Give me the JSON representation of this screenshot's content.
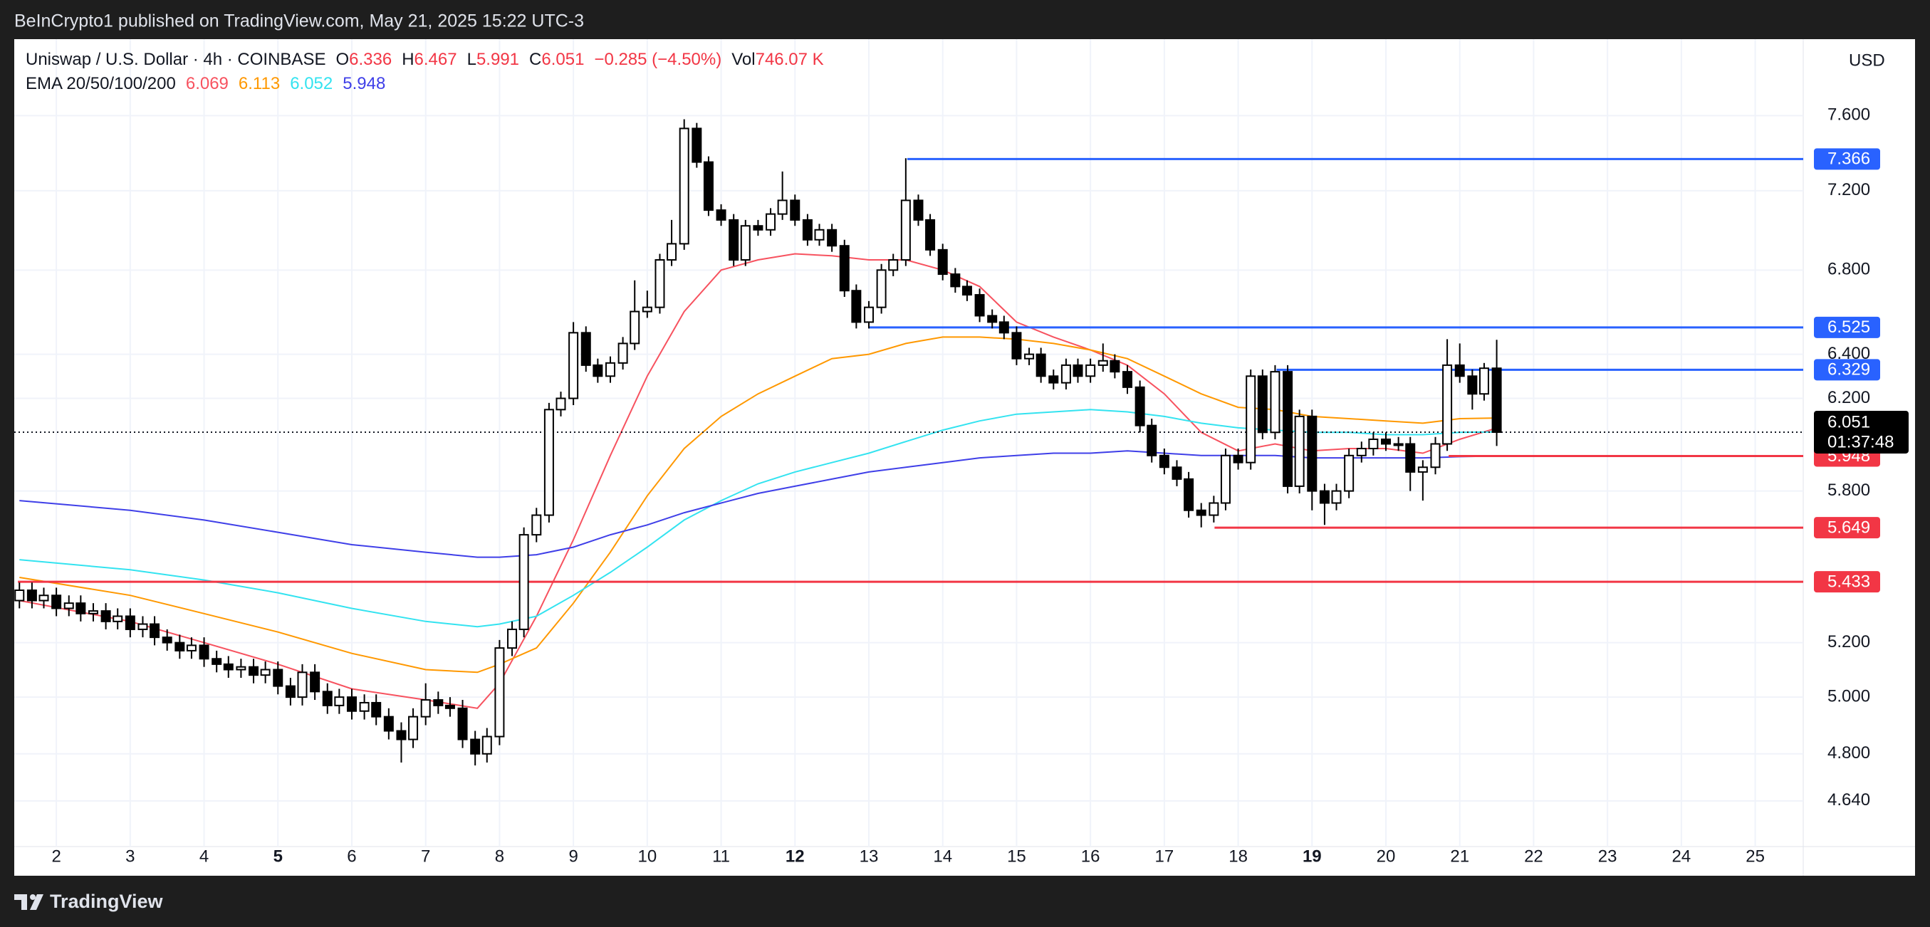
{
  "header": {
    "publisher": "BeInCrypto1 published on TradingView.com, May 21, 2025 15:22 UTC-3"
  },
  "footer": {
    "brand": "TradingView"
  },
  "legend": {
    "symbol": "Uniswap / U.S. Dollar · 4h · COINBASE",
    "ohlc_labels": [
      "O",
      "H",
      "L",
      "C"
    ],
    "change": "−0.285 (−4.50%)",
    "volume_label": "Vol",
    "volume": "746.07 K",
    "ema_label": "EMA 20/50/100/200"
  },
  "chart_data": {
    "type": "candlestick",
    "currency": "USD",
    "log_scale": true,
    "grid": true,
    "up_color": "#ffffff",
    "down_color": "#000000",
    "xlim": [
      1.43,
      25.65
    ],
    "ylim": [
      4.49,
      8.03
    ],
    "xticks": [
      2,
      3,
      4,
      5,
      6,
      7,
      8,
      9,
      10,
      11,
      12,
      13,
      14,
      15,
      16,
      17,
      18,
      19,
      20,
      21,
      22,
      23,
      24,
      25
    ],
    "xticks_bold": [
      5,
      12,
      19
    ],
    "yticks": [
      {
        "value": 7.6,
        "label": "7.600"
      },
      {
        "value": 7.2,
        "label": "7.200"
      },
      {
        "value": 6.8,
        "label": "6.800"
      },
      {
        "value": 6.4,
        "label": "6.400"
      },
      {
        "value": 6.2,
        "label": "6.200"
      },
      {
        "value": 5.8,
        "label": "5.800"
      },
      {
        "value": 5.2,
        "label": "5.200"
      },
      {
        "value": 5,
        "label": "5.000"
      },
      {
        "value": 4.8,
        "label": "4.800"
      },
      {
        "value": 4.64,
        "label": "4.640"
      }
    ],
    "x": [
      1.5,
      1.67,
      1.83,
      2,
      2.17,
      2.33,
      2.5,
      2.67,
      2.83,
      3,
      3.17,
      3.33,
      3.5,
      3.67,
      3.83,
      4,
      4.17,
      4.33,
      4.5,
      4.67,
      4.83,
      5,
      5.17,
      5.33,
      5.5,
      5.67,
      5.83,
      6,
      6.17,
      6.33,
      6.5,
      6.67,
      6.83,
      7,
      7.17,
      7.33,
      7.5,
      7.67,
      7.83,
      8,
      8.17,
      8.33,
      8.5,
      8.67,
      8.83,
      9,
      9.17,
      9.33,
      9.5,
      9.67,
      9.83,
      10,
      10.17,
      10.33,
      10.5,
      10.67,
      10.83,
      11,
      11.17,
      11.33,
      11.5,
      11.67,
      11.83,
      12,
      12.17,
      12.33,
      12.5,
      12.67,
      12.83,
      13,
      13.17,
      13.33,
      13.5,
      13.67,
      13.83,
      14,
      14.17,
      14.33,
      14.5,
      14.67,
      14.83,
      15,
      15.17,
      15.33,
      15.5,
      15.67,
      15.83,
      16,
      16.17,
      16.33,
      16.5,
      16.67,
      16.83,
      17,
      17.17,
      17.33,
      17.5,
      17.67,
      17.83,
      18,
      18.17,
      18.33,
      18.5,
      18.67,
      18.83,
      19,
      19.17,
      19.33,
      19.5,
      19.67,
      19.83,
      20,
      20.17,
      20.33,
      20.5,
      20.67,
      20.83,
      21,
      21.17,
      21.33,
      21.5
    ],
    "open": [
      5.36,
      5.4,
      5.36,
      5.38,
      5.33,
      5.35,
      5.31,
      5.32,
      5.28,
      5.3,
      5.25,
      5.27,
      5.22,
      5.2,
      5.17,
      5.19,
      5.14,
      5.12,
      5.1,
      5.11,
      5.08,
      5.1,
      5.04,
      5.0,
      5.09,
      5.02,
      4.97,
      5.0,
      4.95,
      4.98,
      4.93,
      4.88,
      4.85,
      4.93,
      4.99,
      4.97,
      4.96,
      4.85,
      4.8,
      4.86,
      5.18,
      5.25,
      5.62,
      5.7,
      6.15,
      6.2,
      6.5,
      6.35,
      6.3,
      6.36,
      6.45,
      6.6,
      6.62,
      6.85,
      6.93,
      7.53,
      7.35,
      7.1,
      7.05,
      6.85,
      7.02,
      7.0,
      7.08,
      7.15,
      7.05,
      6.95,
      7.0,
      6.92,
      6.7,
      6.55,
      6.62,
      6.8,
      6.85,
      7.15,
      7.05,
      6.9,
      6.78,
      6.72,
      6.68,
      6.58,
      6.55,
      6.5,
      6.38,
      6.4,
      6.3,
      6.27,
      6.35,
      6.3,
      6.35,
      6.37,
      6.32,
      6.25,
      6.08,
      5.95,
      5.9,
      5.85,
      5.72,
      5.7,
      5.75,
      5.95,
      5.92,
      6.3,
      6.05,
      6.32,
      5.82,
      6.12,
      5.8,
      5.75,
      5.8,
      5.95,
      5.98,
      6.02,
      6.0,
      6.0,
      5.88,
      5.9,
      6.0,
      6.35,
      6.3,
      6.22,
      6.336
    ],
    "high": [
      5.43,
      5.43,
      5.41,
      5.41,
      5.38,
      5.38,
      5.35,
      5.35,
      5.33,
      5.33,
      5.3,
      5.3,
      5.25,
      5.23,
      5.22,
      5.22,
      5.17,
      5.15,
      5.14,
      5.14,
      5.13,
      5.13,
      5.07,
      5.12,
      5.12,
      5.05,
      5.03,
      5.03,
      5.01,
      5.01,
      4.96,
      4.91,
      4.96,
      5.05,
      5.02,
      5.0,
      4.99,
      4.88,
      4.89,
      5.21,
      5.28,
      5.65,
      5.73,
      6.18,
      6.23,
      6.55,
      6.53,
      6.38,
      6.39,
      6.48,
      6.75,
      6.7,
      6.88,
      7.05,
      7.58,
      7.56,
      7.38,
      7.13,
      7.08,
      7.05,
      7.05,
      7.11,
      7.3,
      7.18,
      7.08,
      7.03,
      7.03,
      6.95,
      6.73,
      6.65,
      6.83,
      6.88,
      7.37,
      7.18,
      7.08,
      6.93,
      6.81,
      6.75,
      6.71,
      6.61,
      6.58,
      6.53,
      6.43,
      6.43,
      6.33,
      6.38,
      6.38,
      6.38,
      6.45,
      6.4,
      6.35,
      6.28,
      6.11,
      5.98,
      5.93,
      5.88,
      5.75,
      5.78,
      5.98,
      5.98,
      6.33,
      6.33,
      6.35,
      6.35,
      6.15,
      6.15,
      5.83,
      5.83,
      5.98,
      6.01,
      6.05,
      6.05,
      6.03,
      6.03,
      5.93,
      6.03,
      6.47,
      6.45,
      6.33,
      6.36,
      6.467
    ],
    "low": [
      5.33,
      5.33,
      5.33,
      5.3,
      5.3,
      5.28,
      5.28,
      5.25,
      5.25,
      5.22,
      5.22,
      5.19,
      5.17,
      5.14,
      5.14,
      5.11,
      5.09,
      5.07,
      5.07,
      5.05,
      5.05,
      5.01,
      4.97,
      4.97,
      4.99,
      4.94,
      4.94,
      4.92,
      4.92,
      4.9,
      4.85,
      4.77,
      4.82,
      4.9,
      4.94,
      4.93,
      4.82,
      4.76,
      4.77,
      4.83,
      5.15,
      5.22,
      5.59,
      5.67,
      6.12,
      6.17,
      6.32,
      6.27,
      6.27,
      6.33,
      6.42,
      6.57,
      6.59,
      6.82,
      6.9,
      7.32,
      7.07,
      7.02,
      6.82,
      6.82,
      6.97,
      6.97,
      7.05,
      7.02,
      6.92,
      6.92,
      6.89,
      6.67,
      6.52,
      6.52,
      6.59,
      6.77,
      6.82,
      7.02,
      6.87,
      6.75,
      6.69,
      6.65,
      6.55,
      6.52,
      6.47,
      6.35,
      6.35,
      6.27,
      6.24,
      6.24,
      6.27,
      6.27,
      6.32,
      6.29,
      6.22,
      6.05,
      5.92,
      5.87,
      5.82,
      5.69,
      5.65,
      5.67,
      5.72,
      5.89,
      5.89,
      6.02,
      6.02,
      5.79,
      5.79,
      5.72,
      5.66,
      5.72,
      5.77,
      5.92,
      5.95,
      5.97,
      5.97,
      5.8,
      5.76,
      5.87,
      5.97,
      6.27,
      6.15,
      6.19,
      5.991
    ],
    "close": [
      5.4,
      5.36,
      5.38,
      5.33,
      5.35,
      5.31,
      5.32,
      5.28,
      5.3,
      5.25,
      5.27,
      5.22,
      5.2,
      5.17,
      5.19,
      5.14,
      5.12,
      5.1,
      5.11,
      5.08,
      5.1,
      5.04,
      5.0,
      5.09,
      5.02,
      4.97,
      5.0,
      4.95,
      4.98,
      4.93,
      4.88,
      4.85,
      4.93,
      4.99,
      4.97,
      4.96,
      4.85,
      4.8,
      4.86,
      5.18,
      5.25,
      5.62,
      5.7,
      6.15,
      6.2,
      6.5,
      6.35,
      6.3,
      6.36,
      6.45,
      6.6,
      6.62,
      6.85,
      6.93,
      7.53,
      7.35,
      7.1,
      7.05,
      6.85,
      7.02,
      7.0,
      7.08,
      7.15,
      7.05,
      6.95,
      7.0,
      6.92,
      6.7,
      6.55,
      6.62,
      6.8,
      6.85,
      7.15,
      7.05,
      6.9,
      6.78,
      6.72,
      6.68,
      6.58,
      6.55,
      6.5,
      6.38,
      6.4,
      6.3,
      6.27,
      6.35,
      6.3,
      6.35,
      6.37,
      6.32,
      6.25,
      6.08,
      5.95,
      5.9,
      5.85,
      5.72,
      5.7,
      5.75,
      5.95,
      5.92,
      6.3,
      6.05,
      6.32,
      5.82,
      6.12,
      5.8,
      5.75,
      5.8,
      5.95,
      5.98,
      6.02,
      6.0,
      6.0,
      5.88,
      5.9,
      6.0,
      6.35,
      6.3,
      6.22,
      6.336,
      6.051
    ],
    "ema_x": [
      1.5,
      3,
      4,
      5,
      6,
      7,
      7.7,
      8,
      8.5,
      9,
      9.5,
      10,
      10.5,
      11,
      11.5,
      12,
      12.5,
      13,
      13.5,
      14,
      14.5,
      15,
      15.5,
      16,
      16.5,
      17,
      17.5,
      18,
      18.5,
      19,
      19.5,
      20,
      20.5,
      21,
      21.5
    ],
    "ema": [
      {
        "color": "#f7525f",
        "values": [
          5.36,
          5.28,
          5.2,
          5.12,
          5.03,
          4.99,
          4.96,
          5.05,
          5.3,
          5.6,
          5.95,
          6.3,
          6.6,
          6.8,
          6.85,
          6.88,
          6.87,
          6.85,
          6.85,
          6.8,
          6.72,
          6.55,
          6.48,
          6.42,
          6.35,
          6.22,
          6.05,
          5.97,
          6.0,
          5.97,
          5.98,
          5.98,
          5.96,
          6.02,
          6.069
        ]
      },
      {
        "color": "#ff9800",
        "values": [
          5.45,
          5.38,
          5.31,
          5.24,
          5.16,
          5.1,
          5.09,
          5.12,
          5.18,
          5.35,
          5.55,
          5.78,
          5.98,
          6.12,
          6.22,
          6.3,
          6.38,
          6.4,
          6.45,
          6.48,
          6.48,
          6.47,
          6.45,
          6.42,
          6.38,
          6.3,
          6.22,
          6.16,
          6.15,
          6.12,
          6.11,
          6.1,
          6.09,
          6.11,
          6.113
        ]
      },
      {
        "color": "#33e3f0",
        "values": [
          5.52,
          5.48,
          5.44,
          5.39,
          5.33,
          5.28,
          5.26,
          5.27,
          5.3,
          5.38,
          5.47,
          5.57,
          5.68,
          5.76,
          5.83,
          5.88,
          5.92,
          5.96,
          6.01,
          6.06,
          6.1,
          6.13,
          6.14,
          6.15,
          6.14,
          6.12,
          6.09,
          6.07,
          6.06,
          6.05,
          6.05,
          6.04,
          6.04,
          6.05,
          6.052
        ]
      },
      {
        "color": "#3f3fe8",
        "values": [
          5.76,
          5.72,
          5.68,
          5.63,
          5.58,
          5.55,
          5.53,
          5.53,
          5.54,
          5.57,
          5.62,
          5.66,
          5.71,
          5.75,
          5.79,
          5.82,
          5.85,
          5.88,
          5.9,
          5.92,
          5.94,
          5.95,
          5.96,
          5.96,
          5.97,
          5.96,
          5.95,
          5.95,
          5.95,
          5.94,
          5.94,
          5.94,
          5.94,
          5.945,
          5.948
        ]
      }
    ],
    "levels": [
      {
        "value": 7.366,
        "x_start": 13.52,
        "color": "#2962ff"
      },
      {
        "value": 6.525,
        "x_start": 13.0,
        "color": "#2962ff"
      },
      {
        "value": 6.329,
        "x_start": 18.52,
        "color": "#2962ff"
      },
      {
        "value": 5.948,
        "x_start": 20.85,
        "color": "#f23645"
      },
      {
        "value": 5.649,
        "x_start": 17.68,
        "color": "#f23645"
      },
      {
        "value": 5.433,
        "x_start": 1.48,
        "color": "#f23645"
      }
    ],
    "countdown": "01:37:48"
  }
}
